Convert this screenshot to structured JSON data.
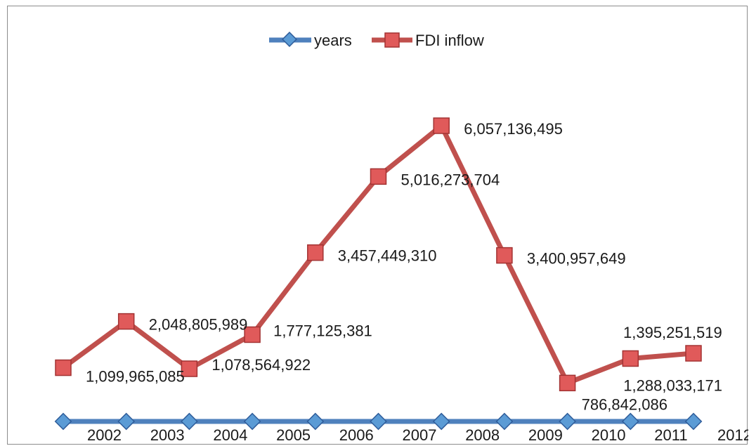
{
  "chart_data": {
    "type": "line",
    "title": "",
    "xlabel": "",
    "ylabel": "",
    "legend_position": "top",
    "grid": false,
    "ylim": [
      0,
      6500000000
    ],
    "series": [
      {
        "name": "years",
        "color": "#4f81bd",
        "marker": "diamond",
        "x": [
          1,
          2,
          3,
          4,
          5,
          6,
          7,
          8,
          9,
          10,
          11
        ],
        "values": [
          2002,
          2003,
          2004,
          2005,
          2006,
          2007,
          2008,
          2009,
          2010,
          2011,
          2012
        ],
        "labels": [
          "2002",
          "2003",
          "2004",
          "2005",
          "2006",
          "2007",
          "2008",
          "2009",
          "2010",
          "2011",
          "2012"
        ]
      },
      {
        "name": "FDI inflow",
        "color": "#c0504d",
        "marker": "square",
        "x": [
          1,
          2,
          3,
          4,
          5,
          6,
          7,
          8,
          9,
          10,
          11
        ],
        "values": [
          1099965085,
          2048805989,
          1078564922,
          1777125381,
          3457449310,
          5016273704,
          6057136495,
          3400957649,
          786842086,
          1288033171,
          1395251519
        ],
        "labels": [
          "1,099,965,085",
          "2,048,805,989",
          "1,078,564,922",
          "1,777,125,381",
          "3,457,449,310",
          "5,016,273,704",
          "6,057,136,495",
          "3,400,957,649",
          "786,842,086",
          "1,288,033,171",
          "1,395,251,519"
        ]
      }
    ]
  }
}
